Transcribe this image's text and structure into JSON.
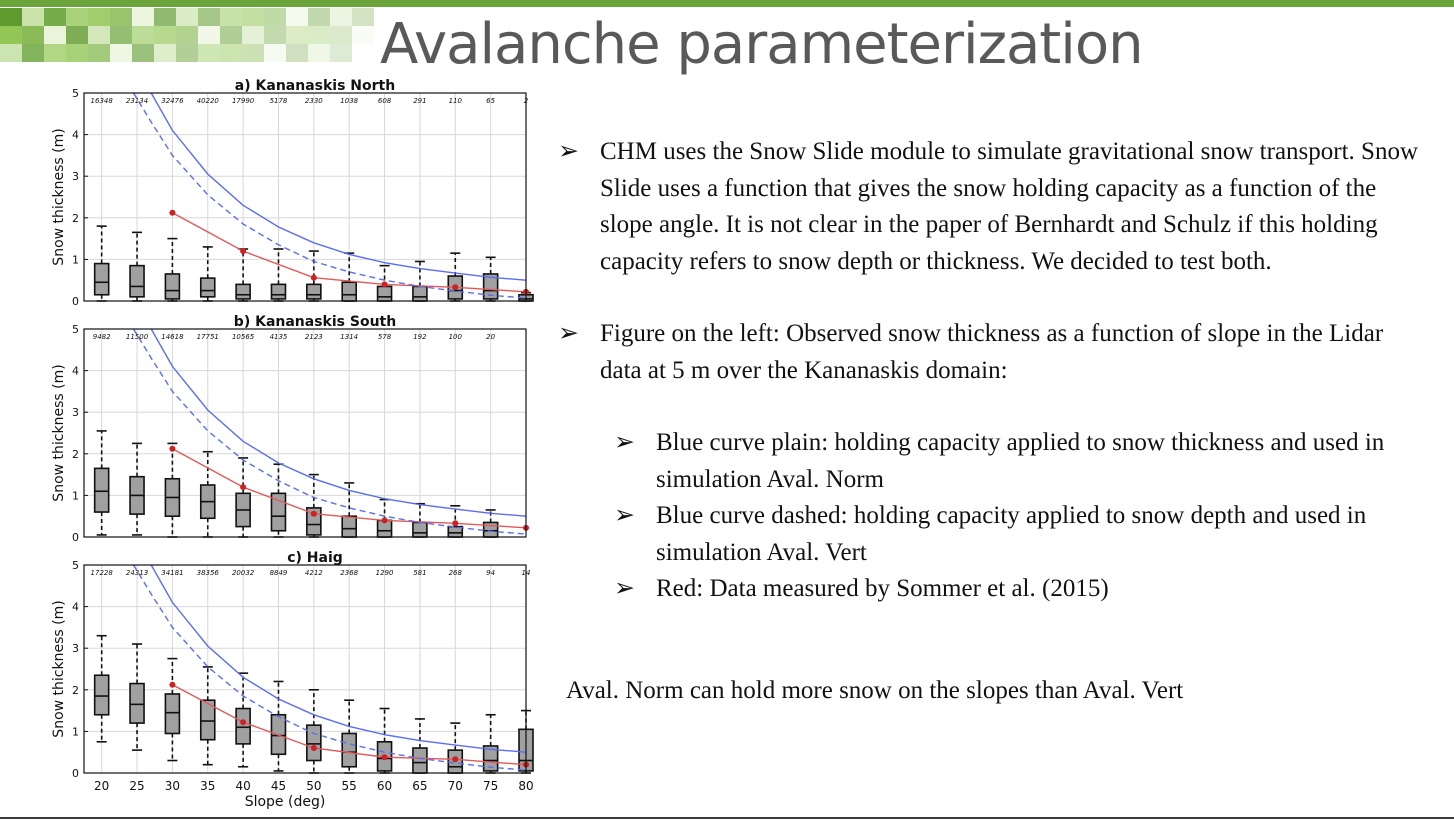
{
  "slide": {
    "title": "Avalanche parameterization",
    "accent_color": "#6aa43a",
    "conclusion": "Aval. Norm can hold more snow on the slopes than Aval. Vert"
  },
  "bullets": {
    "arrow_glyph": "➢",
    "b1": "CHM uses the Snow Slide module to simulate gravitational snow transport. Snow Slide uses a function that gives the snow holding capacity as a function of the slope angle. It is not clear in the paper of Bernhardt and Schulz if this holding capacity refers to snow depth or thickness. We decided to test both.",
    "b2": "Figure on the left: Observed snow thickness as a function of slope in the Lidar data at 5 m over the Kananaskis domain:",
    "s1": "Blue curve plain: holding capacity applied to snow thickness and used in simulation Aval. Norm",
    "s2": "Blue curve dashed: holding capacity applied to snow depth and used in simulation Aval. Vert",
    "s3": "Red: Data measured by Sommer et al. (2015)"
  },
  "chart_data": [
    {
      "type": "box",
      "title": "a)  Kananaskis North",
      "ylabel": "Snow thickness (m)",
      "xlabel": "",
      "ylim": [
        0,
        5
      ],
      "yticks": [
        "0",
        "1",
        "2",
        "3",
        "4",
        "5"
      ],
      "categories": [
        20,
        25,
        30,
        35,
        40,
        45,
        50,
        55,
        60,
        65,
        70,
        75,
        80
      ],
      "counts": [
        "16348",
        "23134",
        "32476",
        "40220",
        "17990",
        "5178",
        "2330",
        "1038",
        "608",
        "291",
        "110",
        "65",
        "2"
      ],
      "boxes": [
        {
          "q1": 0.15,
          "median": 0.45,
          "q3": 0.9,
          "wlo": 0.0,
          "whi": 1.8
        },
        {
          "q1": 0.1,
          "median": 0.35,
          "q3": 0.85,
          "wlo": 0.0,
          "whi": 1.65
        },
        {
          "q1": 0.05,
          "median": 0.25,
          "q3": 0.65,
          "wlo": 0.0,
          "whi": 1.5
        },
        {
          "q1": 0.1,
          "median": 0.25,
          "q3": 0.55,
          "wlo": 0.0,
          "whi": 1.3
        },
        {
          "q1": 0.05,
          "median": 0.15,
          "q3": 0.4,
          "wlo": 0.0,
          "whi": 1.25
        },
        {
          "q1": 0.05,
          "median": 0.15,
          "q3": 0.4,
          "wlo": 0.0,
          "whi": 1.25
        },
        {
          "q1": 0.05,
          "median": 0.15,
          "q3": 0.4,
          "wlo": 0.0,
          "whi": 1.2
        },
        {
          "q1": 0.0,
          "median": 0.15,
          "q3": 0.45,
          "wlo": 0.0,
          "whi": 1.15
        },
        {
          "q1": 0.0,
          "median": 0.1,
          "q3": 0.35,
          "wlo": 0.0,
          "whi": 0.85
        },
        {
          "q1": 0.0,
          "median": 0.1,
          "q3": 0.35,
          "wlo": 0.0,
          "whi": 0.95
        },
        {
          "q1": 0.05,
          "median": 0.25,
          "q3": 0.6,
          "wlo": 0.0,
          "whi": 1.15
        },
        {
          "q1": 0.05,
          "median": 0.25,
          "q3": 0.65,
          "wlo": 0.0,
          "whi": 1.05
        },
        {
          "q1": 0.0,
          "median": 0.05,
          "q3": 0.15,
          "wlo": 0.0,
          "whi": 0.2
        }
      ],
      "series": [
        {
          "name": "Red",
          "color": "#e05a5a",
          "style": "markers+line",
          "x": [
            30,
            40,
            50,
            60,
            70,
            80
          ],
          "values": [
            2.12,
            1.2,
            0.56,
            0.4,
            0.33,
            0.22
          ]
        },
        {
          "name": "Blue curve plain",
          "color": "#5a6ef0",
          "style": "solid",
          "x": [
            27,
            30,
            35,
            40,
            45,
            50,
            55,
            60,
            65,
            70,
            75,
            80
          ],
          "values": [
            5.0,
            4.1,
            3.05,
            2.3,
            1.78,
            1.4,
            1.12,
            0.92,
            0.78,
            0.67,
            0.57,
            0.5
          ]
        },
        {
          "name": "Blue curve dashed",
          "color": "#5a6ef0",
          "style": "dashed",
          "x": [
            24.5,
            27,
            30,
            35,
            40,
            45,
            50,
            55,
            60,
            65,
            70,
            75,
            80
          ],
          "values": [
            5.0,
            4.3,
            3.5,
            2.55,
            1.85,
            1.35,
            0.95,
            0.7,
            0.5,
            0.35,
            0.24,
            0.14,
            0.07
          ]
        }
      ],
      "grid": true
    },
    {
      "type": "box",
      "title": "b) Kananaskis South",
      "ylabel": "Snow thickness (m)",
      "xlabel": "",
      "ylim": [
        0,
        5
      ],
      "yticks": [
        "0",
        "1",
        "2",
        "3",
        "4",
        "5"
      ],
      "categories": [
        20,
        25,
        30,
        35,
        40,
        45,
        50,
        55,
        60,
        65,
        70,
        75,
        80
      ],
      "counts": [
        "9482",
        "11500",
        "14618",
        "17751",
        "10565",
        "4135",
        "2123",
        "1314",
        "578",
        "192",
        "100",
        "20",
        ""
      ],
      "boxes": [
        {
          "q1": 0.6,
          "median": 1.1,
          "q3": 1.65,
          "wlo": 0.05,
          "whi": 2.55
        },
        {
          "q1": 0.55,
          "median": 1.0,
          "q3": 1.45,
          "wlo": 0.05,
          "whi": 2.25
        },
        {
          "q1": 0.5,
          "median": 0.95,
          "q3": 1.4,
          "wlo": 0.0,
          "whi": 2.25
        },
        {
          "q1": 0.45,
          "median": 0.85,
          "q3": 1.25,
          "wlo": 0.0,
          "whi": 2.05
        },
        {
          "q1": 0.25,
          "median": 0.65,
          "q3": 1.05,
          "wlo": 0.0,
          "whi": 1.9
        },
        {
          "q1": 0.15,
          "median": 0.5,
          "q3": 1.05,
          "wlo": 0.0,
          "whi": 1.75
        },
        {
          "q1": 0.05,
          "median": 0.3,
          "q3": 0.7,
          "wlo": 0.0,
          "whi": 1.5
        },
        {
          "q1": 0.0,
          "median": 0.2,
          "q3": 0.5,
          "wlo": 0.0,
          "whi": 1.3
        },
        {
          "q1": 0.0,
          "median": 0.15,
          "q3": 0.4,
          "wlo": 0.0,
          "whi": 0.9
        },
        {
          "q1": 0.0,
          "median": 0.1,
          "q3": 0.35,
          "wlo": 0.0,
          "whi": 0.8
        },
        {
          "q1": 0.0,
          "median": 0.1,
          "q3": 0.25,
          "wlo": 0.0,
          "whi": 0.75
        },
        {
          "q1": 0.0,
          "median": 0.15,
          "q3": 0.35,
          "wlo": 0.0,
          "whi": 0.65
        },
        null
      ],
      "series": [
        {
          "name": "Red",
          "color": "#e05a5a",
          "style": "markers+line",
          "x": [
            30,
            40,
            50,
            60,
            70,
            80
          ],
          "values": [
            2.12,
            1.2,
            0.56,
            0.4,
            0.33,
            0.22
          ]
        },
        {
          "name": "Blue curve plain",
          "color": "#5a6ef0",
          "style": "solid",
          "x": [
            27,
            30,
            35,
            40,
            45,
            50,
            55,
            60,
            65,
            70,
            75,
            80
          ],
          "values": [
            5.0,
            4.1,
            3.05,
            2.3,
            1.78,
            1.4,
            1.12,
            0.92,
            0.78,
            0.67,
            0.57,
            0.5
          ]
        },
        {
          "name": "Blue curve dashed",
          "color": "#5a6ef0",
          "style": "dashed",
          "x": [
            24.5,
            27,
            30,
            35,
            40,
            45,
            50,
            55,
            60,
            65,
            70,
            75,
            80
          ],
          "values": [
            5.0,
            4.3,
            3.5,
            2.55,
            1.85,
            1.35,
            0.95,
            0.7,
            0.5,
            0.35,
            0.24,
            0.14,
            0.07
          ]
        }
      ],
      "grid": true
    },
    {
      "type": "box",
      "title": "c) Haig",
      "ylabel": "Snow thickness (m)",
      "xlabel": "Slope (deg)",
      "ylim": [
        0,
        5
      ],
      "yticks": [
        "0",
        "1",
        "2",
        "3",
        "4",
        "5"
      ],
      "categories": [
        20,
        25,
        30,
        35,
        40,
        45,
        50,
        55,
        60,
        65,
        70,
        75,
        80
      ],
      "xticks": [
        "20",
        "25",
        "30",
        "35",
        "40",
        "45",
        "50",
        "55",
        "60",
        "65",
        "70",
        "75",
        "80"
      ],
      "counts": [
        "17228",
        "24313",
        "34181",
        "38356",
        "20032",
        "8849",
        "4212",
        "2368",
        "1290",
        "581",
        "268",
        "94",
        "14"
      ],
      "boxes": [
        {
          "q1": 1.4,
          "median": 1.85,
          "q3": 2.35,
          "wlo": 0.75,
          "whi": 3.3
        },
        {
          "q1": 1.2,
          "median": 1.65,
          "q3": 2.15,
          "wlo": 0.55,
          "whi": 3.1
        },
        {
          "q1": 0.95,
          "median": 1.45,
          "q3": 1.9,
          "wlo": 0.3,
          "whi": 2.75
        },
        {
          "q1": 0.8,
          "median": 1.25,
          "q3": 1.75,
          "wlo": 0.2,
          "whi": 2.55
        },
        {
          "q1": 0.7,
          "median": 1.1,
          "q3": 1.55,
          "wlo": 0.15,
          "whi": 2.4
        },
        {
          "q1": 0.45,
          "median": 0.9,
          "q3": 1.4,
          "wlo": 0.05,
          "whi": 2.2
        },
        {
          "q1": 0.3,
          "median": 0.7,
          "q3": 1.15,
          "wlo": 0.0,
          "whi": 2.0
        },
        {
          "q1": 0.15,
          "median": 0.5,
          "q3": 0.95,
          "wlo": 0.0,
          "whi": 1.75
        },
        {
          "q1": 0.05,
          "median": 0.35,
          "q3": 0.75,
          "wlo": 0.0,
          "whi": 1.55
        },
        {
          "q1": 0.0,
          "median": 0.25,
          "q3": 0.6,
          "wlo": 0.0,
          "whi": 1.3
        },
        {
          "q1": 0.0,
          "median": 0.15,
          "q3": 0.55,
          "wlo": 0.0,
          "whi": 1.2
        },
        {
          "q1": 0.05,
          "median": 0.3,
          "q3": 0.65,
          "wlo": 0.0,
          "whi": 1.4
        },
        {
          "q1": 0.05,
          "median": 0.3,
          "q3": 1.05,
          "wlo": 0.0,
          "whi": 1.5
        }
      ],
      "series": [
        {
          "name": "Red",
          "color": "#e05a5a",
          "style": "markers+line",
          "x": [
            30,
            40,
            50,
            60,
            70,
            80
          ],
          "values": [
            2.12,
            1.22,
            0.6,
            0.38,
            0.33,
            0.2
          ]
        },
        {
          "name": "Blue curve plain",
          "color": "#5a6ef0",
          "style": "solid",
          "x": [
            27,
            30,
            35,
            40,
            45,
            50,
            55,
            60,
            65,
            70,
            75,
            80
          ],
          "values": [
            5.0,
            4.1,
            3.05,
            2.3,
            1.78,
            1.4,
            1.12,
            0.92,
            0.78,
            0.67,
            0.57,
            0.5
          ]
        },
        {
          "name": "Blue curve dashed",
          "color": "#5a6ef0",
          "style": "dashed",
          "x": [
            24.5,
            27,
            30,
            35,
            40,
            45,
            50,
            55,
            60,
            65,
            70,
            75,
            80
          ],
          "values": [
            5.0,
            4.3,
            3.5,
            2.55,
            1.85,
            1.35,
            0.95,
            0.7,
            0.5,
            0.35,
            0.24,
            0.14,
            0.07
          ]
        }
      ],
      "grid": true
    }
  ]
}
